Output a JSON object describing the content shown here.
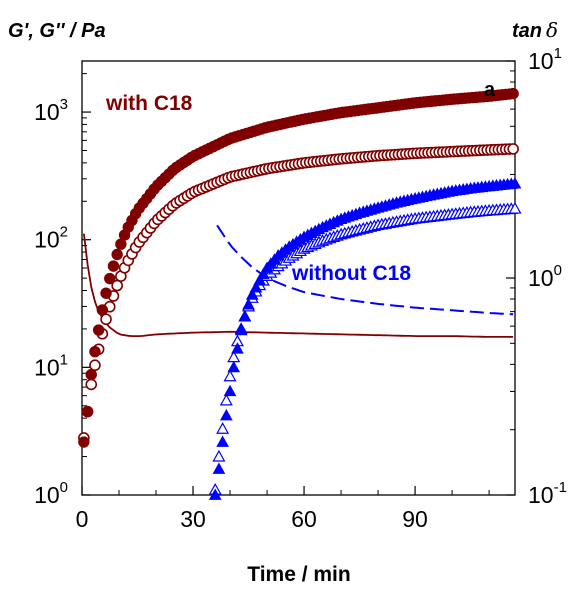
{
  "chart_data": {
    "type": "scatter",
    "panel_label": "a",
    "xlabel": "Time / min",
    "ylabel_left": "G', G'' / Pa",
    "ylabel_right": "tan",
    "ylabel_right_symbol": "δ",
    "x_range": [
      0,
      117
    ],
    "x_ticks": [
      {
        "value": 0,
        "label": "0"
      },
      {
        "value": 30,
        "label": "30"
      },
      {
        "value": 60,
        "label": "60"
      },
      {
        "value": 90,
        "label": "90"
      }
    ],
    "y_left_log_range": [
      1,
      3.4
    ],
    "y_left_ticks": [
      {
        "exp": 0,
        "base": "10",
        "sup": "0"
      },
      {
        "exp": 1,
        "base": "10",
        "sup": "1"
      },
      {
        "exp": 2,
        "base": "10",
        "sup": "2"
      },
      {
        "exp": 3,
        "base": "10",
        "sup": "3"
      }
    ],
    "y_right_log_range": [
      0.1,
      10
    ],
    "y_right_ticks": [
      {
        "exp": -1,
        "base": "10",
        "sup": "-1"
      },
      {
        "exp": 0,
        "base": "10",
        "sup": "0"
      },
      {
        "exp": 1,
        "base": "10",
        "sup": "1"
      }
    ],
    "annotations": [
      {
        "text": "with C18",
        "color": "#800000"
      },
      {
        "text": "without C18",
        "color": "#0000ff"
      }
    ],
    "colors": {
      "with_c18": "#800000",
      "without_c18": "#0000ff"
    },
    "series": [
      {
        "group": "with C18",
        "quantity": "G'",
        "marker": "filled-circle",
        "axis": "left",
        "points": [
          [
            0.5,
            2.6
          ],
          [
            1,
            3
          ],
          [
            1.5,
            4.5
          ],
          [
            2,
            7
          ],
          [
            3,
            11
          ],
          [
            4,
            16
          ],
          [
            5,
            24
          ],
          [
            6,
            33
          ],
          [
            7,
            44
          ],
          [
            8,
            56
          ],
          [
            10,
            85
          ],
          [
            12,
            118
          ],
          [
            15,
            170
          ],
          [
            20,
            260
          ],
          [
            25,
            360
          ],
          [
            30,
            450
          ],
          [
            40,
            620
          ],
          [
            50,
            760
          ],
          [
            60,
            880
          ],
          [
            70,
            990
          ],
          [
            80,
            1080
          ],
          [
            90,
            1180
          ],
          [
            100,
            1260
          ],
          [
            110,
            1330
          ],
          [
            117,
            1400
          ]
        ]
      },
      {
        "group": "with C18",
        "quantity": "G''",
        "marker": "open-circle",
        "axis": "left",
        "points": [
          [
            0.5,
            2.8
          ],
          [
            1,
            3.5
          ],
          [
            1.5,
            4.5
          ],
          [
            2,
            6
          ],
          [
            3,
            9
          ],
          [
            4,
            12
          ],
          [
            5,
            16
          ],
          [
            6,
            21
          ],
          [
            7,
            27
          ],
          [
            8,
            33
          ],
          [
            10,
            48
          ],
          [
            12,
            65
          ],
          [
            15,
            92
          ],
          [
            20,
            140
          ],
          [
            25,
            190
          ],
          [
            30,
            235
          ],
          [
            40,
            310
          ],
          [
            50,
            360
          ],
          [
            60,
            400
          ],
          [
            70,
            430
          ],
          [
            80,
            455
          ],
          [
            90,
            475
          ],
          [
            100,
            490
          ],
          [
            110,
            505
          ],
          [
            117,
            515
          ]
        ]
      },
      {
        "group": "with C18",
        "quantity": "tan δ",
        "marker": "solid-line",
        "axis": "right",
        "points": [
          [
            0.5,
            1.6
          ],
          [
            2,
            0.98
          ],
          [
            4,
            0.72
          ],
          [
            7,
            0.6
          ],
          [
            10,
            0.55
          ],
          [
            13,
            0.54
          ],
          [
            16,
            0.54
          ],
          [
            20,
            0.55
          ],
          [
            30,
            0.56
          ],
          [
            40,
            0.565
          ],
          [
            50,
            0.56
          ],
          [
            60,
            0.555
          ],
          [
            70,
            0.55
          ],
          [
            80,
            0.545
          ],
          [
            90,
            0.54
          ],
          [
            100,
            0.54
          ],
          [
            110,
            0.535
          ],
          [
            117,
            0.535
          ]
        ]
      },
      {
        "group": "without C18",
        "quantity": "G'",
        "marker": "filled-triangle",
        "axis": "left",
        "points": [
          [
            36,
            1
          ],
          [
            37,
            1.6
          ],
          [
            38,
            2.6
          ],
          [
            39,
            4.2
          ],
          [
            40,
            6.5
          ],
          [
            41,
            10
          ],
          [
            42,
            14
          ],
          [
            43,
            19.5
          ],
          [
            44,
            25
          ],
          [
            45,
            31
          ],
          [
            46,
            37
          ],
          [
            48,
            48
          ],
          [
            50,
            60
          ],
          [
            53,
            75
          ],
          [
            56,
            88
          ],
          [
            60,
            105
          ],
          [
            65,
            125
          ],
          [
            70,
            145
          ],
          [
            75,
            162
          ],
          [
            80,
            178
          ],
          [
            85,
            195
          ],
          [
            90,
            210
          ],
          [
            95,
            225
          ],
          [
            100,
            240
          ],
          [
            105,
            252
          ],
          [
            110,
            262
          ],
          [
            117,
            275
          ]
        ]
      },
      {
        "group": "without C18",
        "quantity": "G''",
        "marker": "open-triangle",
        "axis": "left",
        "points": [
          [
            36,
            1.1
          ],
          [
            37,
            2
          ],
          [
            38,
            3.3
          ],
          [
            39,
            5.5
          ],
          [
            40,
            8.5
          ],
          [
            41,
            12
          ],
          [
            42,
            16
          ],
          [
            43,
            20
          ],
          [
            44,
            25
          ],
          [
            45,
            30
          ],
          [
            46,
            35
          ],
          [
            48,
            44
          ],
          [
            50,
            52
          ],
          [
            53,
            62
          ],
          [
            56,
            72
          ],
          [
            60,
            85
          ],
          [
            65,
            98
          ],
          [
            70,
            110
          ],
          [
            75,
            120
          ],
          [
            80,
            130
          ],
          [
            85,
            138
          ],
          [
            90,
            146
          ],
          [
            95,
            152
          ],
          [
            100,
            158
          ],
          [
            105,
            164
          ],
          [
            110,
            169
          ],
          [
            117,
            175
          ]
        ]
      },
      {
        "group": "without C18",
        "quantity": "tan δ",
        "marker": "dashed-line",
        "axis": "right",
        "points": [
          [
            36.5,
            1.75
          ],
          [
            38,
            1.6
          ],
          [
            40,
            1.42
          ],
          [
            43,
            1.25
          ],
          [
            46,
            1.12
          ],
          [
            50,
            1.0
          ],
          [
            55,
            0.92
          ],
          [
            60,
            0.86
          ],
          [
            70,
            0.8
          ],
          [
            80,
            0.76
          ],
          [
            90,
            0.73
          ],
          [
            100,
            0.71
          ],
          [
            110,
            0.69
          ],
          [
            117,
            0.68
          ]
        ]
      }
    ]
  }
}
